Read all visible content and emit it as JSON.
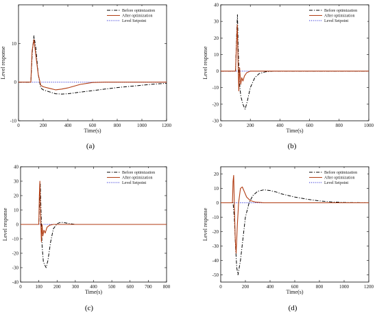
{
  "chart_data": [
    {
      "type": "line",
      "panel_label": "(a)",
      "xlabel": "Time(s)",
      "ylabel": "Level response",
      "xlim": [
        0,
        1200
      ],
      "ylim": [
        -10,
        20
      ],
      "xticks": [
        0,
        200,
        400,
        600,
        800,
        1000,
        1200
      ],
      "yticks": [
        -10,
        0,
        10
      ],
      "legend_position": "top-right",
      "series": [
        {
          "name": "Before optimization",
          "color": "#000000",
          "style": "dashdot",
          "x": [
            0,
            100,
            112,
            125,
            140,
            160,
            180,
            200,
            250,
            300,
            350,
            400,
            500,
            600,
            700,
            800,
            900,
            1000,
            1100,
            1200
          ],
          "y": [
            0,
            0,
            8,
            12,
            9,
            2,
            -1.5,
            -2,
            -2.5,
            -3,
            -3.1,
            -3,
            -2.6,
            -2.2,
            -1.8,
            -1.4,
            -1.1,
            -0.8,
            -0.5,
            -0.3
          ]
        },
        {
          "name": "After optimization",
          "color": "#b03a10",
          "style": "solid",
          "x": [
            0,
            100,
            110,
            125,
            140,
            160,
            180,
            200,
            250,
            300,
            350,
            400,
            500,
            600,
            700,
            800,
            1000,
            1200
          ],
          "y": [
            0,
            0,
            8,
            11,
            7,
            2,
            -0.8,
            -1.2,
            -1.6,
            -2,
            -1.8,
            -1.5,
            -0.6,
            -0.1,
            0,
            0,
            0,
            0
          ]
        },
        {
          "name": "Level Setpoint",
          "color": "#2a2ad4",
          "style": "dotted",
          "x": [
            0,
            1200
          ],
          "y": [
            0,
            0
          ]
        }
      ]
    },
    {
      "type": "line",
      "panel_label": "(b)",
      "xlabel": "Time(s)",
      "ylabel": "Level response",
      "xlim": [
        0,
        1000
      ],
      "ylim": [
        -30,
        40
      ],
      "xticks": [
        0,
        200,
        400,
        600,
        800,
        1000
      ],
      "yticks": [
        -30,
        -20,
        -10,
        0,
        10,
        20,
        30,
        40
      ],
      "legend_position": "top-right",
      "series": [
        {
          "name": "Before optimization",
          "color": "#000000",
          "style": "dashdot",
          "x": [
            0,
            100,
            107,
            113,
            118,
            125,
            135,
            150,
            165,
            180,
            200,
            230,
            260,
            300,
            350,
            400,
            600,
            1000
          ],
          "y": [
            0,
            0,
            20,
            34,
            15,
            -5,
            -15,
            -20,
            -23,
            -18,
            -10,
            -4,
            -1.5,
            -0.5,
            0,
            0,
            0,
            0
          ]
        },
        {
          "name": "After optimization",
          "color": "#b03a10",
          "style": "solid",
          "x": [
            0,
            100,
            106,
            112,
            117,
            122,
            128,
            135,
            142,
            150,
            160,
            175,
            200,
            250,
            1000
          ],
          "y": [
            0,
            0,
            15,
            28,
            5,
            -12,
            2,
            -8,
            -4,
            -6,
            -3,
            -1,
            0,
            0,
            0
          ]
        },
        {
          "name": "Level Setpoint",
          "color": "#2a2ad4",
          "style": "dotted",
          "x": [
            0,
            1000
          ],
          "y": [
            0,
            0
          ]
        }
      ]
    },
    {
      "type": "line",
      "panel_label": "(c)",
      "xlabel": "Time(s)",
      "ylabel": "Level response",
      "xlim": [
        0,
        800
      ],
      "ylim": [
        -40,
        40
      ],
      "xticks": [
        0,
        100,
        200,
        300,
        400,
        500,
        600,
        700,
        800
      ],
      "yticks": [
        -40,
        -30,
        -20,
        -10,
        0,
        10,
        20,
        30,
        40
      ],
      "legend_position": "top-right",
      "series": [
        {
          "name": "Before optimization",
          "color": "#000000",
          "style": "dashdot",
          "x": [
            0,
            100,
            104,
            108,
            112,
            118,
            125,
            132,
            140,
            150,
            165,
            180,
            200,
            220,
            240,
            270,
            300,
            400,
            800
          ],
          "y": [
            0,
            0,
            15,
            28,
            10,
            -15,
            -26,
            -28,
            -30,
            -25,
            -12,
            -3,
            0.5,
            1.5,
            1.2,
            0.5,
            0,
            0,
            0
          ]
        },
        {
          "name": "After optimization",
          "color": "#b03a10",
          "style": "solid",
          "x": [
            0,
            100,
            103,
            106,
            110,
            114,
            118,
            122,
            128,
            135,
            145,
            160,
            180,
            800
          ],
          "y": [
            0,
            0,
            20,
            30,
            5,
            -12,
            0,
            -8,
            -4,
            -6,
            -2,
            -0.5,
            0,
            0
          ]
        },
        {
          "name": "Level Setpoint",
          "color": "#2a2ad4",
          "style": "dotted",
          "x": [
            0,
            800
          ],
          "y": [
            0,
            0
          ]
        }
      ]
    },
    {
      "type": "line",
      "panel_label": "(d)",
      "xlabel": "Time(s)",
      "ylabel": "Level response",
      "xlim": [
        0,
        1200
      ],
      "ylim": [
        -55,
        25
      ],
      "xticks": [
        0,
        200,
        400,
        600,
        800,
        1000,
        1200
      ],
      "yticks": [
        -50,
        -40,
        -30,
        -20,
        -10,
        0,
        10,
        20
      ],
      "legend_position": "top-right",
      "series": [
        {
          "name": "Before optimization",
          "color": "#000000",
          "style": "dashdot",
          "x": [
            0,
            100,
            110,
            120,
            130,
            140,
            160,
            180,
            200,
            230,
            260,
            300,
            350,
            400,
            450,
            500,
            600,
            700,
            800,
            900,
            1000,
            1200
          ],
          "y": [
            0,
            0,
            -10,
            -30,
            -45,
            -50,
            -40,
            -25,
            -10,
            0,
            5,
            8,
            9,
            8.5,
            7.5,
            6,
            4,
            2.5,
            1.3,
            0.6,
            0.2,
            0
          ]
        },
        {
          "name": "After optimization",
          "color": "#b03a10",
          "style": "solid",
          "x": [
            0,
            95,
            100,
            105,
            110,
            118,
            125,
            135,
            145,
            160,
            175,
            190,
            210,
            240,
            280,
            350,
            500,
            1200
          ],
          "y": [
            0,
            0,
            15,
            19,
            0,
            -25,
            -35,
            -15,
            0,
            10,
            11,
            8,
            4,
            1.5,
            0.5,
            0,
            0,
            0
          ]
        },
        {
          "name": "Level Setpoint",
          "color": "#2a2ad4",
          "style": "dotted",
          "x": [
            0,
            1200
          ],
          "y": [
            0,
            0
          ]
        }
      ]
    }
  ]
}
